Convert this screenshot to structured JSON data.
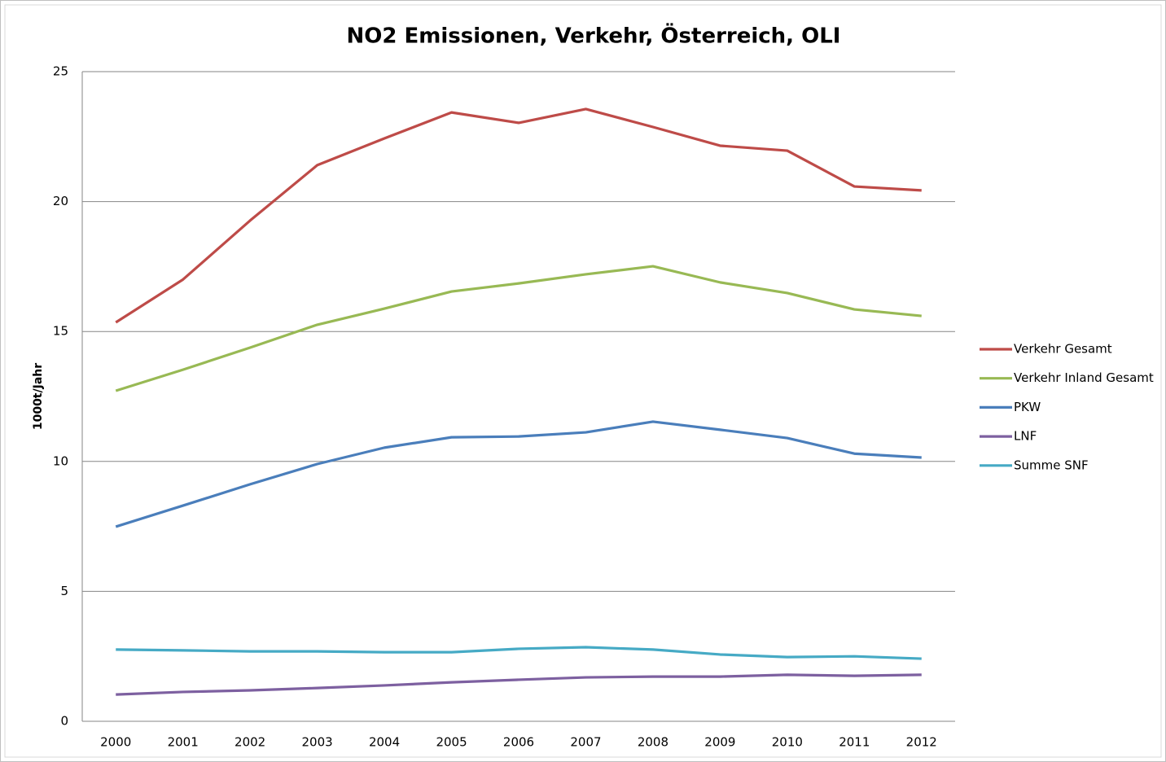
{
  "chart_data": {
    "type": "line",
    "title": "NO2 Emissionen, Verkehr, Österreich, OLI",
    "y_label": "1000t/Jahr",
    "categories": [
      "2000",
      "2001",
      "2002",
      "2003",
      "2004",
      "2005",
      "2006",
      "2007",
      "2008",
      "2009",
      "2010",
      "2011",
      "2012"
    ],
    "series": [
      {
        "name": "Verkehr Gesamt",
        "color": "#be4b48",
        "values": [
          15.35,
          17.0,
          19.27,
          21.4,
          22.43,
          23.43,
          23.03,
          23.56,
          22.87,
          22.15,
          21.96,
          20.58,
          20.43
        ]
      },
      {
        "name": "Verkehr Inland Gesamt",
        "color": "#98b954",
        "values": [
          12.72,
          13.53,
          14.38,
          15.26,
          15.88,
          16.54,
          16.85,
          17.2,
          17.51,
          16.89,
          16.48,
          15.85,
          15.6
        ]
      },
      {
        "name": "PKW",
        "color": "#4a7ebb",
        "values": [
          7.49,
          8.3,
          9.12,
          9.9,
          10.53,
          10.93,
          10.96,
          11.12,
          11.53,
          11.22,
          10.9,
          10.3,
          10.15
        ]
      },
      {
        "name": "LNF",
        "color": "#7d60a0",
        "values": [
          1.03,
          1.13,
          1.19,
          1.28,
          1.38,
          1.5,
          1.6,
          1.69,
          1.72,
          1.72,
          1.79,
          1.75,
          1.79
        ]
      },
      {
        "name": "Summe SNF",
        "color": "#46aac5",
        "values": [
          2.76,
          2.73,
          2.69,
          2.69,
          2.66,
          2.66,
          2.79,
          2.85,
          2.76,
          2.57,
          2.47,
          2.5,
          2.41
        ]
      }
    ],
    "ylim": [
      0,
      25
    ],
    "yticks": [
      0,
      5,
      10,
      15,
      20,
      25
    ],
    "grid": true,
    "legend": "right"
  }
}
